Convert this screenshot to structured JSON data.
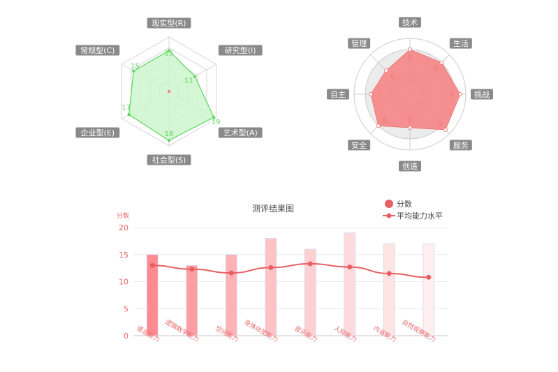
{
  "chart_data": [
    {
      "type": "radar",
      "indicators": [
        "现实型(R)",
        "研究型(I)",
        "艺术型(A)",
        "社会型(S)",
        "企业型(E)",
        "常规型(C)"
      ],
      "values": [
        15,
        11,
        19,
        18,
        17,
        15
      ],
      "max": 20,
      "shape": "polygon",
      "colors": {
        "line": "#5ad55a",
        "fill": "#ccf5cc",
        "grid": "#d6d6d6",
        "label_bg": "#8a8a8a"
      }
    },
    {
      "type": "radar",
      "indicators": [
        "技术",
        "生活",
        "挑战",
        "服务",
        "创造",
        "安全",
        "自主",
        "管理"
      ],
      "values": [
        8,
        8,
        9,
        9,
        6,
        8,
        7,
        6
      ],
      "max": 10,
      "shape": "circle",
      "colors": {
        "line": "#f07a7a",
        "fill": "#f58a8a",
        "grid": "#cccccc",
        "band": "#ececec",
        "label_bg": "#8a8a8a"
      }
    },
    {
      "type": "bar",
      "title": "测评结果图",
      "ylabel": "分数",
      "ylim": [
        0,
        20
      ],
      "yticks": [
        0,
        5,
        10,
        15,
        20
      ],
      "categories": [
        "语言能力",
        "逻辑数学能力",
        "空间能力",
        "身体动觉能力",
        "音乐能力",
        "人际能力",
        "内省能力",
        "自然观察能力"
      ],
      "series": [
        {
          "name": "分数",
          "type": "bar",
          "values": [
            15,
            13,
            15,
            18,
            16,
            19,
            17,
            17
          ]
        },
        {
          "name": "平均能力水平",
          "type": "line",
          "values": [
            13,
            12.3,
            11.6,
            12.6,
            13.3,
            12.7,
            11.5,
            10.8
          ]
        }
      ],
      "bar_colors": [
        "#ff8a8f",
        "#ff9ea2",
        "#ffb2b5",
        "#ffc3c6",
        "#ffd0d2",
        "#ffdadc",
        "#ffe4e5",
        "#ffeef0"
      ],
      "line_color": "#e85f63",
      "legend_position": "top-right"
    }
  ]
}
